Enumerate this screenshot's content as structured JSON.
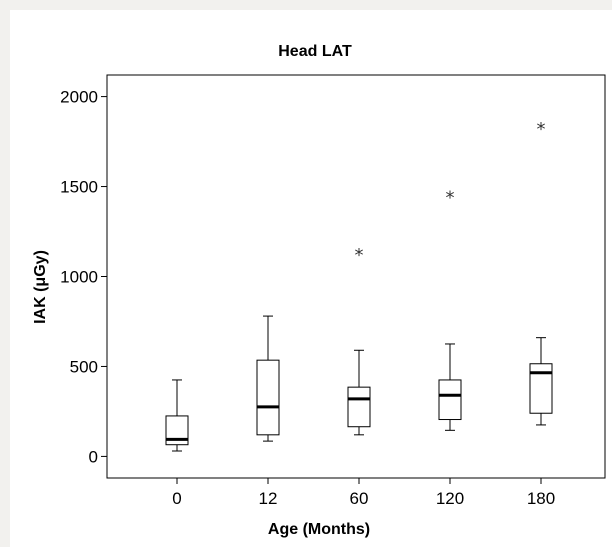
{
  "chart_data": {
    "type": "box",
    "title": "Head LAT",
    "xlabel": "Age (Months)",
    "ylabel": "IAK (μGy)",
    "categories": [
      "0",
      "12",
      "60",
      "120",
      "180"
    ],
    "ylim": [
      -120,
      2120
    ],
    "yticks": [
      0,
      500,
      1000,
      1500,
      2000
    ],
    "boxes": [
      {
        "category": "0",
        "whisker_low": 30,
        "q1": 65,
        "median": 95,
        "q3": 225,
        "whisker_high": 425,
        "outliers": []
      },
      {
        "category": "12",
        "whisker_low": 85,
        "q1": 120,
        "median": 275,
        "q3": 535,
        "whisker_high": 780,
        "outliers": []
      },
      {
        "category": "60",
        "whisker_low": 120,
        "q1": 165,
        "median": 320,
        "q3": 385,
        "whisker_high": 590,
        "outliers": [
          1130
        ]
      },
      {
        "category": "120",
        "whisker_low": 145,
        "q1": 205,
        "median": 340,
        "q3": 425,
        "whisker_high": 625,
        "outliers": [
          1450
        ]
      },
      {
        "category": "180",
        "whisker_low": 175,
        "q1": 240,
        "median": 465,
        "q3": 515,
        "whisker_high": 660,
        "outliers": [
          1830
        ]
      }
    ],
    "outlier_marker": "*",
    "grid": false,
    "legend": "none"
  }
}
